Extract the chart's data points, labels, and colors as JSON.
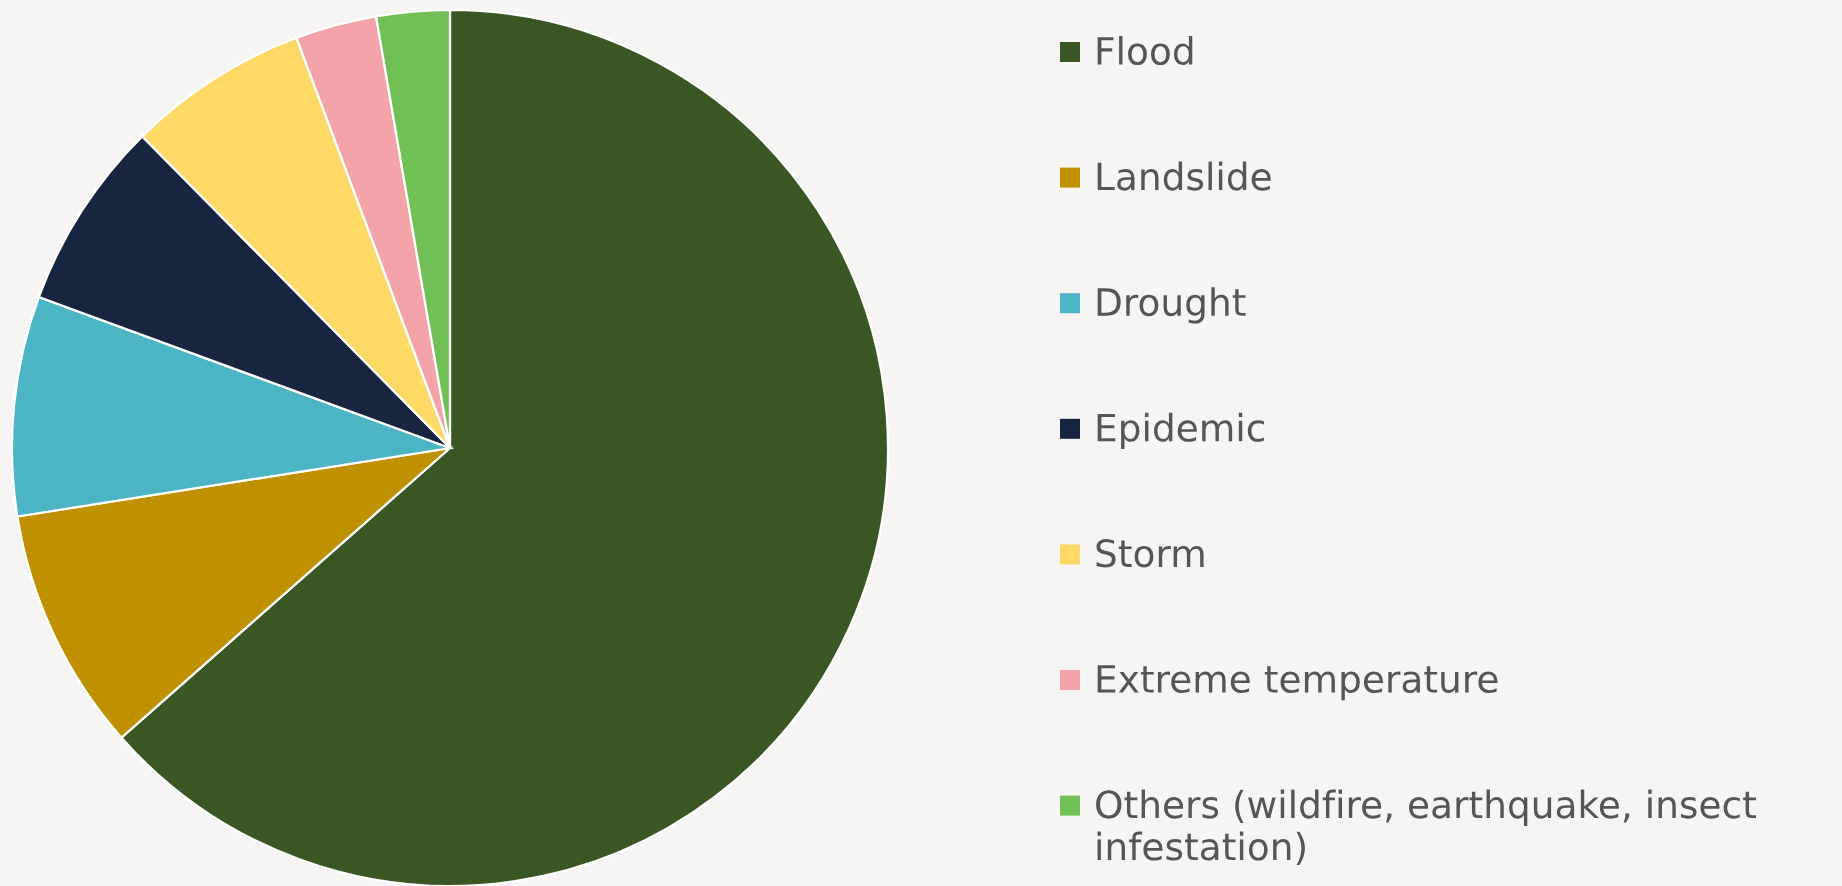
{
  "chart_data": {
    "type": "pie",
    "categories": [
      "Flood",
      "Landslide",
      "Drought",
      "Epidemic",
      "Storm",
      "Extreme temperature",
      "Others (wildfire, earthquake, insect infestation)"
    ],
    "values": [
      63.5,
      9.0,
      8.1,
      7.0,
      6.7,
      3.0,
      2.7
    ],
    "colors": [
      "#3a5723",
      "#bf9000",
      "#4bb5c6",
      "#172540",
      "#ffd966",
      "#f4a3a8",
      "#70c055"
    ],
    "legend": "right"
  }
}
